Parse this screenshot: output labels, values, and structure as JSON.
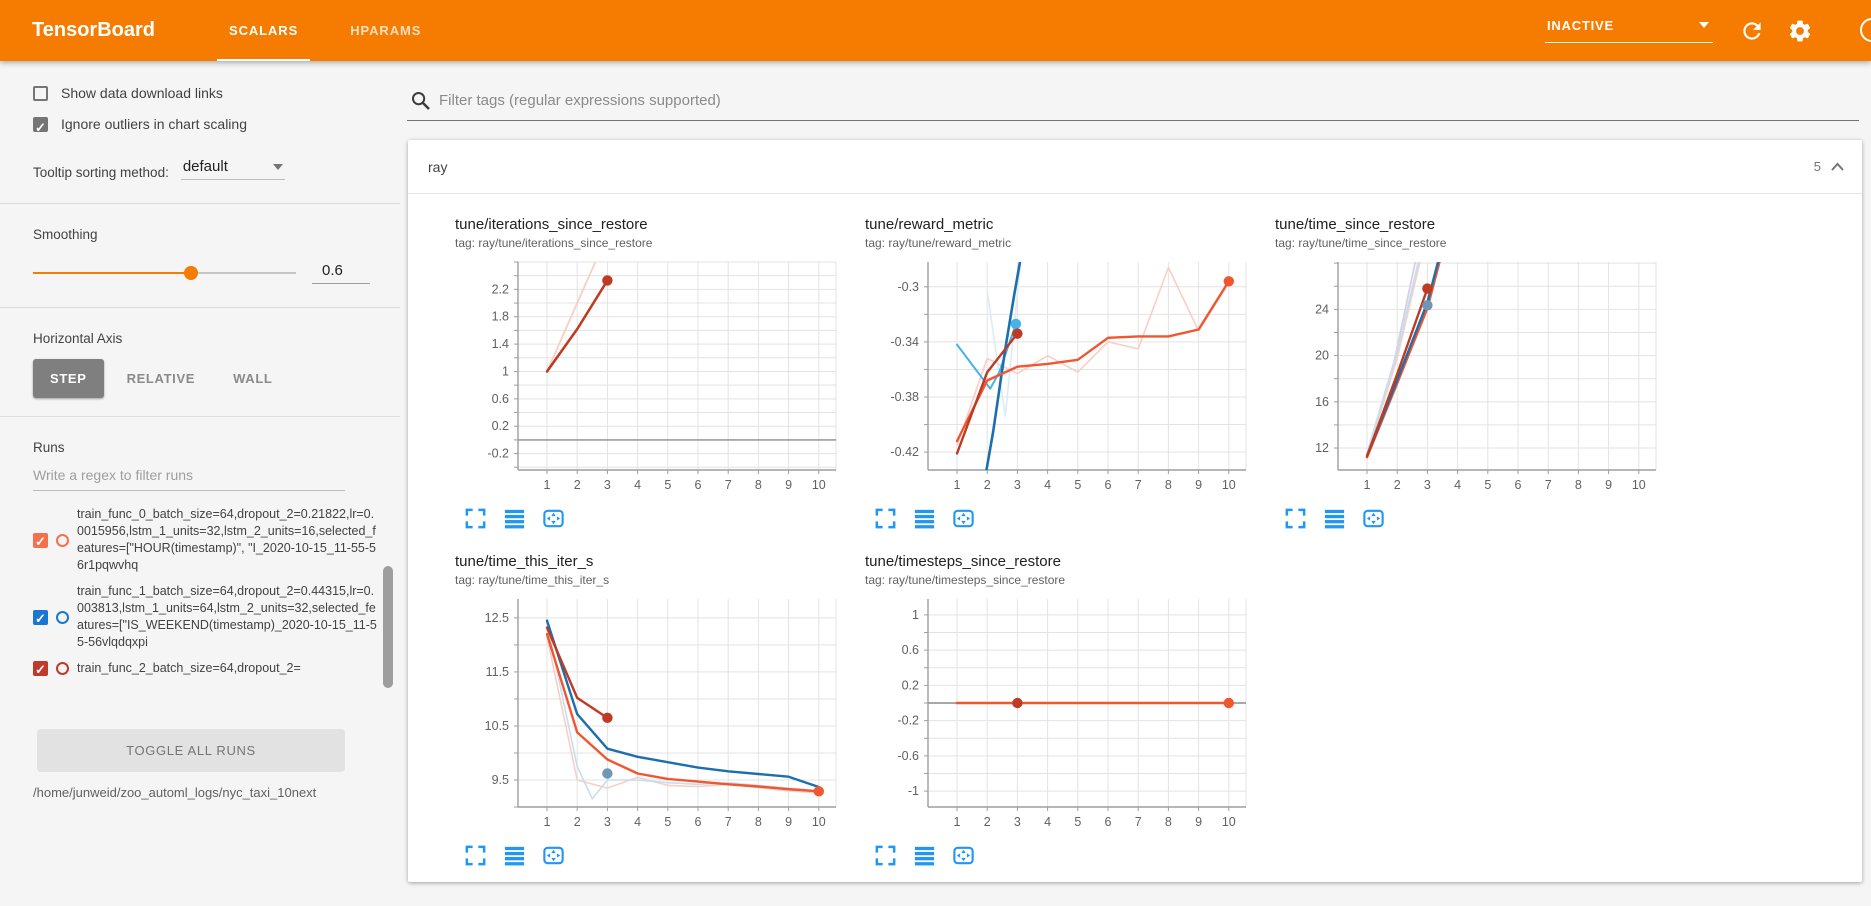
{
  "header": {
    "title": "TensorBoard",
    "tabs": [
      {
        "label": "SCALARS",
        "active": true
      },
      {
        "label": "HPARAMS",
        "active": false
      }
    ],
    "status": "INACTIVE",
    "icons": [
      "reload-icon",
      "settings-gear-icon",
      "help-icon"
    ]
  },
  "sidebar": {
    "show_download": {
      "label": "Show data download links",
      "checked": false
    },
    "ignore_outliers": {
      "label": "Ignore outliers in chart scaling",
      "checked": true
    },
    "tooltip_sort": {
      "label": "Tooltip sorting method:",
      "value": "default"
    },
    "smoothing": {
      "label": "Smoothing",
      "value": "0.6"
    },
    "haxis": {
      "label": "Horizontal Axis",
      "options": [
        "STEP",
        "RELATIVE",
        "WALL"
      ],
      "selected": "STEP"
    },
    "runs": {
      "label": "Runs",
      "filter_placeholder": "Write a regex to filter runs",
      "items": [
        {
          "name": "train_func_0_batch_size=64,dropout_2=0.21822,lr=0.0015956,lstm_1_units=32,lstm_2_units=16,selected_features=[\"HOUR(timestamp)\", \"I_2020-10-15_11-55-56r1pqwvhq",
          "color": "#f4714e",
          "checked": true
        },
        {
          "name": "train_func_1_batch_size=64,dropout_2=0.44315,lr=0.003813,lstm_1_units=64,lstm_2_units=32,selected_features=[\"IS_WEEKEND(timestamp)_2020-10-15_11-55-56vlqdqxpi",
          "color": "#1976d2",
          "checked": true
        },
        {
          "name": "train_func_2_batch_size=64,dropout_2=",
          "color": "#c0392b",
          "checked": true
        }
      ],
      "toggle_all": "TOGGLE ALL RUNS",
      "logdir": "/home/junweid/zoo_automl_logs/nyc_taxi_10next"
    }
  },
  "main": {
    "filter_placeholder": "Filter tags (regular expressions supported)",
    "section": {
      "name": "ray",
      "count": "5"
    }
  },
  "palette": {
    "orange": "#f0562f",
    "dark_red": "#bf3a22",
    "dark_blue": "#1b6fae",
    "cyan": "#45b3e8",
    "steel": "#6f96b5",
    "pale_orange": "#f8cfc3",
    "pale_blue": "#c3dff2",
    "pale_blue2": "#dcecf7",
    "lavender": "#d5cfe8",
    "accent_blue": "#2196f3",
    "header_orange": "#f57c00"
  },
  "chart_data": [
    {
      "type": "line",
      "title": "tune/iterations_since_restore",
      "tag": "tag: ray/tune/iterations_since_restore",
      "xticks": [
        1,
        2,
        3,
        4,
        5,
        6,
        7,
        8,
        9,
        10
      ],
      "ylim": [
        -0.44,
        2.6
      ],
      "yticks": [
        2.2,
        1.8,
        1.4,
        1,
        0.6,
        0.2,
        -0.2
      ],
      "grid_step": 0.2,
      "zero_line": true,
      "series": [
        {
          "name": "train_func_0 unsmoothed",
          "color": "pale_orange",
          "width": 1.8,
          "points": [
            [
              1,
              1
            ],
            [
              2,
              2
            ],
            [
              3,
              3
            ]
          ]
        },
        {
          "name": "train_func_0 smoothed",
          "color": "orange",
          "width": 2.4,
          "points": [
            [
              1,
              1
            ],
            [
              2,
              1.62
            ],
            [
              3,
              2.33
            ]
          ]
        },
        {
          "name": "train_func_2 smoothed",
          "color": "dark_red",
          "width": 2.4,
          "points": [
            [
              1,
              1
            ],
            [
              2,
              1.62
            ],
            [
              3,
              2.33
            ]
          ]
        }
      ],
      "dots": [
        {
          "x": 3,
          "y": 2.33,
          "color": "dark_red"
        }
      ]
    },
    {
      "type": "line",
      "title": "tune/reward_metric",
      "tag": "tag: ray/tune/reward_metric",
      "xticks": [
        1,
        2,
        3,
        4,
        5,
        6,
        7,
        8,
        9,
        10
      ],
      "ylim": [
        -0.433,
        -0.282
      ],
      "yticks": [
        -0.3,
        -0.34,
        -0.38,
        -0.42
      ],
      "grid_step": 0.02,
      "zero_line": false,
      "series": [
        {
          "name": "train_func_0 unsmoothed",
          "color": "pale_orange",
          "width": 1.6,
          "points": [
            [
              1,
              -0.415
            ],
            [
              2,
              -0.352
            ],
            [
              3,
              -0.363
            ],
            [
              4,
              -0.35
            ],
            [
              5,
              -0.362
            ],
            [
              6,
              -0.34
            ],
            [
              7,
              -0.345
            ],
            [
              8,
              -0.286
            ],
            [
              9,
              -0.332
            ],
            [
              10,
              -0.297
            ]
          ]
        },
        {
          "name": "train_func_1 unsmoothed b",
          "color": "pale_blue2",
          "width": 1.6,
          "points": [
            [
              2,
              -0.303
            ],
            [
              2.6,
              -0.394
            ],
            [
              3.15,
              -0.272
            ]
          ]
        },
        {
          "name": "train_func_1 unsmoothed",
          "color": "cyan",
          "width": 2.0,
          "points": [
            [
              1,
              -0.342
            ],
            [
              2.1,
              -0.374
            ],
            [
              2.4,
              -0.362
            ],
            [
              2.95,
              -0.327
            ]
          ]
        },
        {
          "name": "train_func_1 smoothed",
          "color": "dark_blue",
          "width": 2.6,
          "points": [
            [
              1.8,
              -0.455
            ],
            [
              2.2,
              -0.405
            ],
            [
              2.6,
              -0.345
            ],
            [
              2.9,
              -0.305
            ],
            [
              3.2,
              -0.268
            ]
          ]
        },
        {
          "name": "train_func_0 smoothed",
          "color": "orange",
          "width": 2.4,
          "points": [
            [
              1,
              -0.412
            ],
            [
              2,
              -0.368
            ],
            [
              3,
              -0.358
            ],
            [
              4,
              -0.356
            ],
            [
              5,
              -0.353
            ],
            [
              6,
              -0.337
            ],
            [
              7,
              -0.336
            ],
            [
              8,
              -0.336
            ],
            [
              9,
              -0.331
            ],
            [
              10,
              -0.296
            ]
          ]
        },
        {
          "name": "train_func_2 smoothed",
          "color": "dark_red",
          "width": 2.4,
          "points": [
            [
              1,
              -0.421
            ],
            [
              2,
              -0.362
            ],
            [
              3,
              -0.334
            ]
          ]
        }
      ],
      "dots": [
        {
          "x": 2.95,
          "y": -0.327,
          "color": "cyan"
        },
        {
          "x": 3,
          "y": -0.334,
          "color": "dark_red"
        },
        {
          "x": 10,
          "y": -0.296,
          "color": "orange"
        }
      ]
    },
    {
      "type": "line",
      "title": "tune/time_since_restore",
      "tag": "tag: ray/tune/time_since_restore",
      "xticks": [
        1,
        2,
        3,
        4,
        5,
        6,
        7,
        8,
        9,
        10
      ],
      "ylim": [
        10.1,
        28.1
      ],
      "yticks": [
        24,
        20,
        16,
        12
      ],
      "grid_step": 2,
      "zero_line": false,
      "series": [
        {
          "name": "unsmoothed a",
          "color": "lavender",
          "width": 1.8,
          "points": [
            [
              1,
              11.5
            ],
            [
              1.9,
              19.5
            ],
            [
              2.6,
              28.1
            ]
          ]
        },
        {
          "name": "unsmoothed b",
          "color": "pale_orange",
          "width": 1.8,
          "points": [
            [
              1,
              11.4
            ],
            [
              2,
              19.8
            ],
            [
              2.75,
              28.1
            ]
          ]
        },
        {
          "name": "unsmoothed c",
          "color": "pale_blue",
          "width": 1.8,
          "points": [
            [
              1,
              11.5
            ],
            [
              2,
              20.3
            ],
            [
              2.7,
              28.1
            ]
          ]
        },
        {
          "name": "train_func_0 smoothed",
          "color": "orange",
          "width": 2.4,
          "points": [
            [
              1,
              11.2
            ],
            [
              2,
              17.6
            ],
            [
              3,
              24.1
            ],
            [
              3.4,
              28.1
            ]
          ]
        },
        {
          "name": "train_func_1 smoothed",
          "color": "dark_blue",
          "width": 2.4,
          "points": [
            [
              1,
              11.3
            ],
            [
              2,
              17.9
            ],
            [
              3,
              24.6
            ],
            [
              3.35,
              28.1
            ]
          ]
        },
        {
          "name": "train_func_2 smoothed",
          "color": "dark_red",
          "width": 2.4,
          "points": [
            [
              1,
              11.3
            ],
            [
              2,
              18.4
            ],
            [
              3,
              25.8
            ]
          ]
        }
      ],
      "dots": [
        {
          "x": 3,
          "y": 25.8,
          "color": "dark_red"
        },
        {
          "x": 3,
          "y": 24.35,
          "color": "steel"
        }
      ]
    },
    {
      "type": "line",
      "title": "tune/time_this_iter_s",
      "tag": "tag: ray/tune/time_this_iter_s",
      "xticks": [
        1,
        2,
        3,
        4,
        5,
        6,
        7,
        8,
        9,
        10
      ],
      "ylim": [
        9.0,
        12.85
      ],
      "yticks": [
        12.5,
        11.5,
        10.5,
        9.5
      ],
      "grid_step": 0.5,
      "zero_line": false,
      "series": [
        {
          "name": "train_func_0 unsmoothed",
          "color": "pale_orange",
          "width": 1.6,
          "points": [
            [
              1,
              12.15
            ],
            [
              2,
              9.5
            ],
            [
              3,
              9.35
            ],
            [
              4,
              9.55
            ],
            [
              5,
              9.4
            ],
            [
              6,
              9.38
            ],
            [
              7,
              9.42
            ],
            [
              8,
              9.36
            ],
            [
              9,
              9.3
            ],
            [
              10,
              9.26
            ]
          ]
        },
        {
          "name": "train_func_1 unsmoothed",
          "color": "pale_blue",
          "width": 1.6,
          "points": [
            [
              1,
              12.4
            ],
            [
              2,
              9.75
            ],
            [
              2.5,
              9.15
            ],
            [
              3,
              9.5
            ],
            [
              4,
              9.5
            ],
            [
              5,
              9.45
            ],
            [
              6,
              9.42
            ],
            [
              7,
              9.45
            ],
            [
              8,
              9.4
            ],
            [
              9,
              9.35
            ],
            [
              10,
              9.3
            ]
          ]
        },
        {
          "name": "train_func_1 smoothed",
          "color": "dark_blue",
          "width": 2.4,
          "points": [
            [
              1,
              12.45
            ],
            [
              2,
              10.72
            ],
            [
              3,
              10.08
            ],
            [
              4,
              9.93
            ],
            [
              5,
              9.83
            ],
            [
              6,
              9.73
            ],
            [
              7,
              9.66
            ],
            [
              8,
              9.61
            ],
            [
              9,
              9.56
            ],
            [
              10,
              9.37
            ]
          ]
        },
        {
          "name": "train_func_0 smoothed",
          "color": "orange",
          "width": 2.4,
          "points": [
            [
              1,
              12.2
            ],
            [
              2,
              10.38
            ],
            [
              3,
              9.88
            ],
            [
              4,
              9.62
            ],
            [
              5,
              9.52
            ],
            [
              6,
              9.47
            ],
            [
              7,
              9.42
            ],
            [
              8,
              9.38
            ],
            [
              9,
              9.33
            ],
            [
              10,
              9.29
            ]
          ]
        },
        {
          "name": "train_func_2 smoothed",
          "color": "dark_red",
          "width": 2.4,
          "points": [
            [
              1,
              12.32
            ],
            [
              2,
              11.02
            ],
            [
              3,
              10.65
            ]
          ]
        }
      ],
      "dots": [
        {
          "x": 3,
          "y": 10.65,
          "color": "dark_red"
        },
        {
          "x": 3,
          "y": 9.62,
          "color": "steel"
        },
        {
          "x": 10,
          "y": 9.29,
          "color": "orange"
        }
      ]
    },
    {
      "type": "line",
      "title": "tune/timesteps_since_restore",
      "tag": "tag: ray/tune/timesteps_since_restore",
      "xticks": [
        1,
        2,
        3,
        4,
        5,
        6,
        7,
        8,
        9,
        10
      ],
      "ylim": [
        -1.18,
        1.18
      ],
      "yticks": [
        1,
        0.6,
        0.2,
        -0.2,
        -0.6,
        -1
      ],
      "grid_step": 0.2,
      "zero_line": true,
      "series": [
        {
          "name": "train_func_0 smoothed",
          "color": "orange",
          "width": 2.6,
          "points": [
            [
              1,
              0
            ],
            [
              10,
              0
            ]
          ]
        }
      ],
      "dots": [
        {
          "x": 3,
          "y": 0,
          "color": "dark_red"
        },
        {
          "x": 10,
          "y": 0,
          "color": "orange"
        }
      ]
    }
  ]
}
